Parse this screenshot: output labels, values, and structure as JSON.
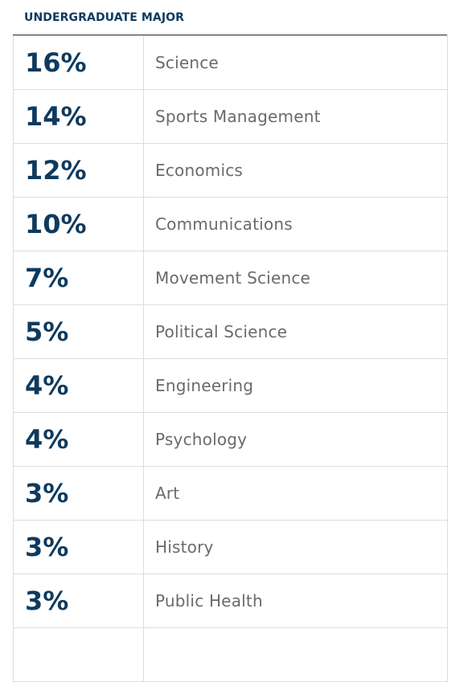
{
  "heading": "UNDERGRADUATE MAJOR",
  "colors": {
    "heading": "#0e3a5e",
    "percent": "#0e3a5e",
    "label": "#6a6a6a",
    "grid": "#dcdcdc",
    "rule": "#3b3b3b"
  },
  "chart_data": {
    "type": "table",
    "title": "UNDERGRADUATE MAJOR",
    "unit": "%",
    "rows": [
      {
        "percent": "16%",
        "value": 16,
        "major": "Science"
      },
      {
        "percent": "14%",
        "value": 14,
        "major": "Sports Management"
      },
      {
        "percent": "12%",
        "value": 12,
        "major": "Economics"
      },
      {
        "percent": "10%",
        "value": 10,
        "major": "Communications"
      },
      {
        "percent": "7%",
        "value": 7,
        "major": "Movement Science"
      },
      {
        "percent": "5%",
        "value": 5,
        "major": "Political Science"
      },
      {
        "percent": "4%",
        "value": 4,
        "major": "Engineering"
      },
      {
        "percent": "4%",
        "value": 4,
        "major": "Psychology"
      },
      {
        "percent": "3%",
        "value": 3,
        "major": "Art"
      },
      {
        "percent": "3%",
        "value": 3,
        "major": "History"
      },
      {
        "percent": "3%",
        "value": 3,
        "major": "Public Health"
      }
    ]
  }
}
